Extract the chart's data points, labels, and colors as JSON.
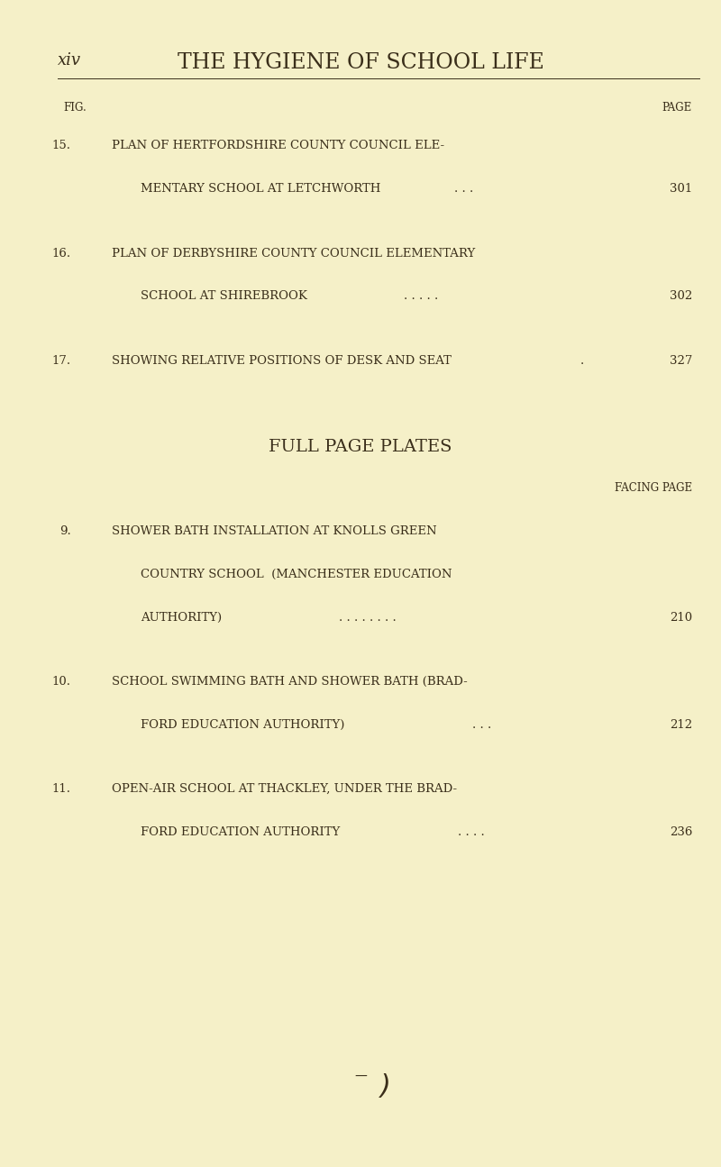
{
  "background_color": "#f5f0c8",
  "text_color": "#3a2e1a",
  "page_width": 8.0,
  "page_height": 12.95,
  "header_left": "xiv",
  "header_title": "THE HYGIENE OF SCHOOL LIFE",
  "col_fig_label": "FIG.",
  "col_page_label": "PAGE",
  "section1_entries": [
    {
      "num": "15.",
      "line1": "PLAN OF HERTFORDSHIRE COUNTY COUNCIL ELE-",
      "line2": "MENTARY SCHOOL AT LETCHWORTH",
      "dots": ". . .",
      "page": "301"
    },
    {
      "num": "16.",
      "line1": "PLAN OF DERBYSHIRE COUNTY COUNCIL ELEMENTARY",
      "line2": "SCHOOL AT SHIREBROOK",
      "dots": ". . . . .",
      "page": "302"
    },
    {
      "num": "17.",
      "line1": "SHOWING RELATIVE POSITIONS OF DESK AND SEAT",
      "line2": "",
      "dots": ".",
      "page": "327"
    }
  ],
  "section2_title": "FULL PAGE PLATES",
  "col_facing_label": "FACING PAGE",
  "section2_entries": [
    {
      "num": "9.",
      "line1": "SHOWER BATH INSTALLATION AT KNOLLS GREEN",
      "line2": "COUNTRY SCHOOL  (MANCHESTER EDUCATION",
      "line3": "AUTHORITY)",
      "dots": ". . . . . . . .",
      "page": "210"
    },
    {
      "num": "10.",
      "line1": "SCHOOL SWIMMING BATH AND SHOWER BATH (BRAD-",
      "line2": "FORD EDUCATION AUTHORITY)",
      "dots": ". . .",
      "page": "212"
    },
    {
      "num": "11.",
      "line1": "OPEN-AIR SCHOOL AT THACKLEY, UNDER THE BRAD-",
      "line2": "FORD EDUCATION AUTHORITY",
      "dots": ". . . .",
      "page": "236"
    }
  ]
}
